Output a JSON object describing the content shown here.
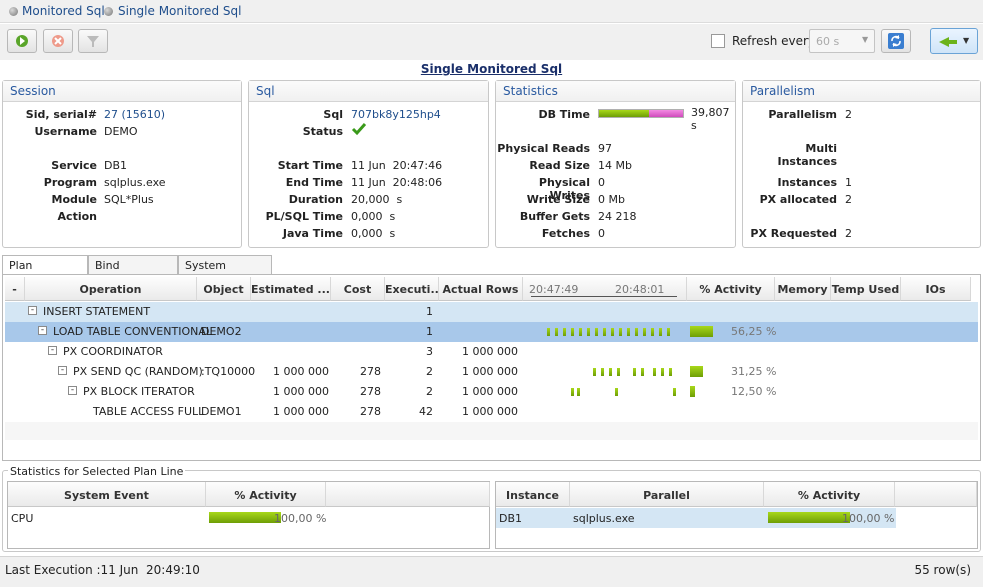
{
  "breadcrumb": {
    "items": [
      "Monitored Sqls",
      "Single Monitored Sql"
    ]
  },
  "toolbar": {
    "refresh_label": "Refresh every",
    "refresh_value": "60 s"
  },
  "page_title": "Single Monitored Sql",
  "session": {
    "title": "Session",
    "fields": [
      {
        "label": "Sid, serial#",
        "value": "27 (15610)"
      },
      {
        "label": "Username",
        "value": "DEMO"
      },
      {
        "label": "Service",
        "value": "DB1"
      },
      {
        "label": "Program",
        "value": "sqlplus.exe"
      },
      {
        "label": "Module",
        "value": "SQL*Plus"
      },
      {
        "label": "Action",
        "value": ""
      }
    ]
  },
  "sql": {
    "title": "Sql",
    "fields": [
      {
        "label": "Sql",
        "value": "707bk8y125hp4"
      },
      {
        "label": "Status",
        "value": ""
      },
      {
        "label": "Start Time",
        "value": "11 Jun  20:47:46"
      },
      {
        "label": "End Time",
        "value": "11 Jun  20:48:06"
      },
      {
        "label": "Duration",
        "value": "20,000  s"
      },
      {
        "label": "PL/SQL Time",
        "value": "0,000  s"
      },
      {
        "label": "Java Time",
        "value": "0,000  s"
      }
    ]
  },
  "statistics": {
    "title": "Statistics",
    "db_time_label": "DB Time",
    "db_time_value": "39,807 s",
    "db_time_split": [
      0.6,
      0.4
    ],
    "fields": [
      {
        "label": "Physical Reads",
        "value": "97"
      },
      {
        "label": "Read Size",
        "value": "14 Mb"
      },
      {
        "label": "Physical Writes",
        "value": "0"
      },
      {
        "label": "Write Size",
        "value": "0 Mb"
      },
      {
        "label": "Buffer Gets",
        "value": "24 218"
      },
      {
        "label": "Fetches",
        "value": "0"
      }
    ]
  },
  "parallelism": {
    "title": "Parallelism",
    "fields": [
      {
        "label": "Parallelism",
        "value": "2"
      },
      {
        "label": "Multi Instances",
        "value": ""
      },
      {
        "label": "Instances",
        "value": "1"
      },
      {
        "label": "PX allocated",
        "value": "2"
      },
      {
        "label": "PX Requested",
        "value": "2"
      }
    ]
  },
  "tabs": [
    "Plan Statistics",
    "Bind Variables",
    "System Events"
  ],
  "plan": {
    "columns": [
      "-",
      "Operation",
      "Object",
      "Estimated ...",
      "Cost",
      "Executi...",
      "Actual Rows",
      "",
      "% Activity",
      "Memory",
      "Temp Used",
      "IOs"
    ],
    "timeline": [
      "20:47:49",
      "20:48:01"
    ],
    "rows": [
      {
        "op": "INSERT STATEMENT",
        "object": "",
        "est": "",
        "cost": "",
        "exec": "1",
        "actual": "",
        "activity": "",
        "activity_frac": 0,
        "selected": false
      },
      {
        "op": "LOAD TABLE CONVENTIONAL",
        "object": "DEMO2",
        "est": "",
        "cost": "",
        "exec": "1",
        "actual": "",
        "activity": "56,25 %",
        "activity_frac": 0.5625,
        "selected": true
      },
      {
        "op": "PX COORDINATOR",
        "object": "",
        "est": "",
        "cost": "",
        "exec": "3",
        "actual": "1 000 000",
        "activity": "",
        "activity_frac": 0,
        "selected": false
      },
      {
        "op": "PX SEND QC (RANDOM)",
        "object": ":TQ10000",
        "est": "1 000 000",
        "cost": "278",
        "exec": "2",
        "actual": "1 000 000",
        "activity": "31,25 %",
        "activity_frac": 0.3125,
        "selected": false
      },
      {
        "op": "PX BLOCK ITERATOR",
        "object": "",
        "est": "1 000 000",
        "cost": "278",
        "exec": "2",
        "actual": "1 000 000",
        "activity": "12,50 %",
        "activity_frac": 0.125,
        "selected": false
      },
      {
        "op": "TABLE ACCESS FULL",
        "object": "DEMO1",
        "est": "1 000 000",
        "cost": "278",
        "exec": "42",
        "actual": "1 000 000",
        "activity": "",
        "activity_frac": 0,
        "selected": false
      }
    ]
  },
  "selected_stats": {
    "title": "Statistics for Selected Plan Line",
    "events": {
      "columns": [
        "System Event",
        "% Activity"
      ],
      "rows": [
        {
          "name": "CPU",
          "activity": "100,00 %",
          "activity_frac": 1.0
        }
      ]
    },
    "instances": {
      "columns": [
        "Instance",
        "Parallel",
        "% Activity"
      ],
      "rows": [
        {
          "instance": "DB1",
          "parallel": "sqlplus.exe",
          "activity": "100,00 %",
          "activity_frac": 1.0
        }
      ]
    }
  },
  "status": {
    "last_execution": "Last Execution :11 Jun  20:49:10",
    "rows": "55 row(s)"
  },
  "colors": {
    "accent": "#2a5aa0",
    "green": "#8cc00e",
    "magenta": "#e060d0",
    "selected": "#a8c8ea"
  }
}
